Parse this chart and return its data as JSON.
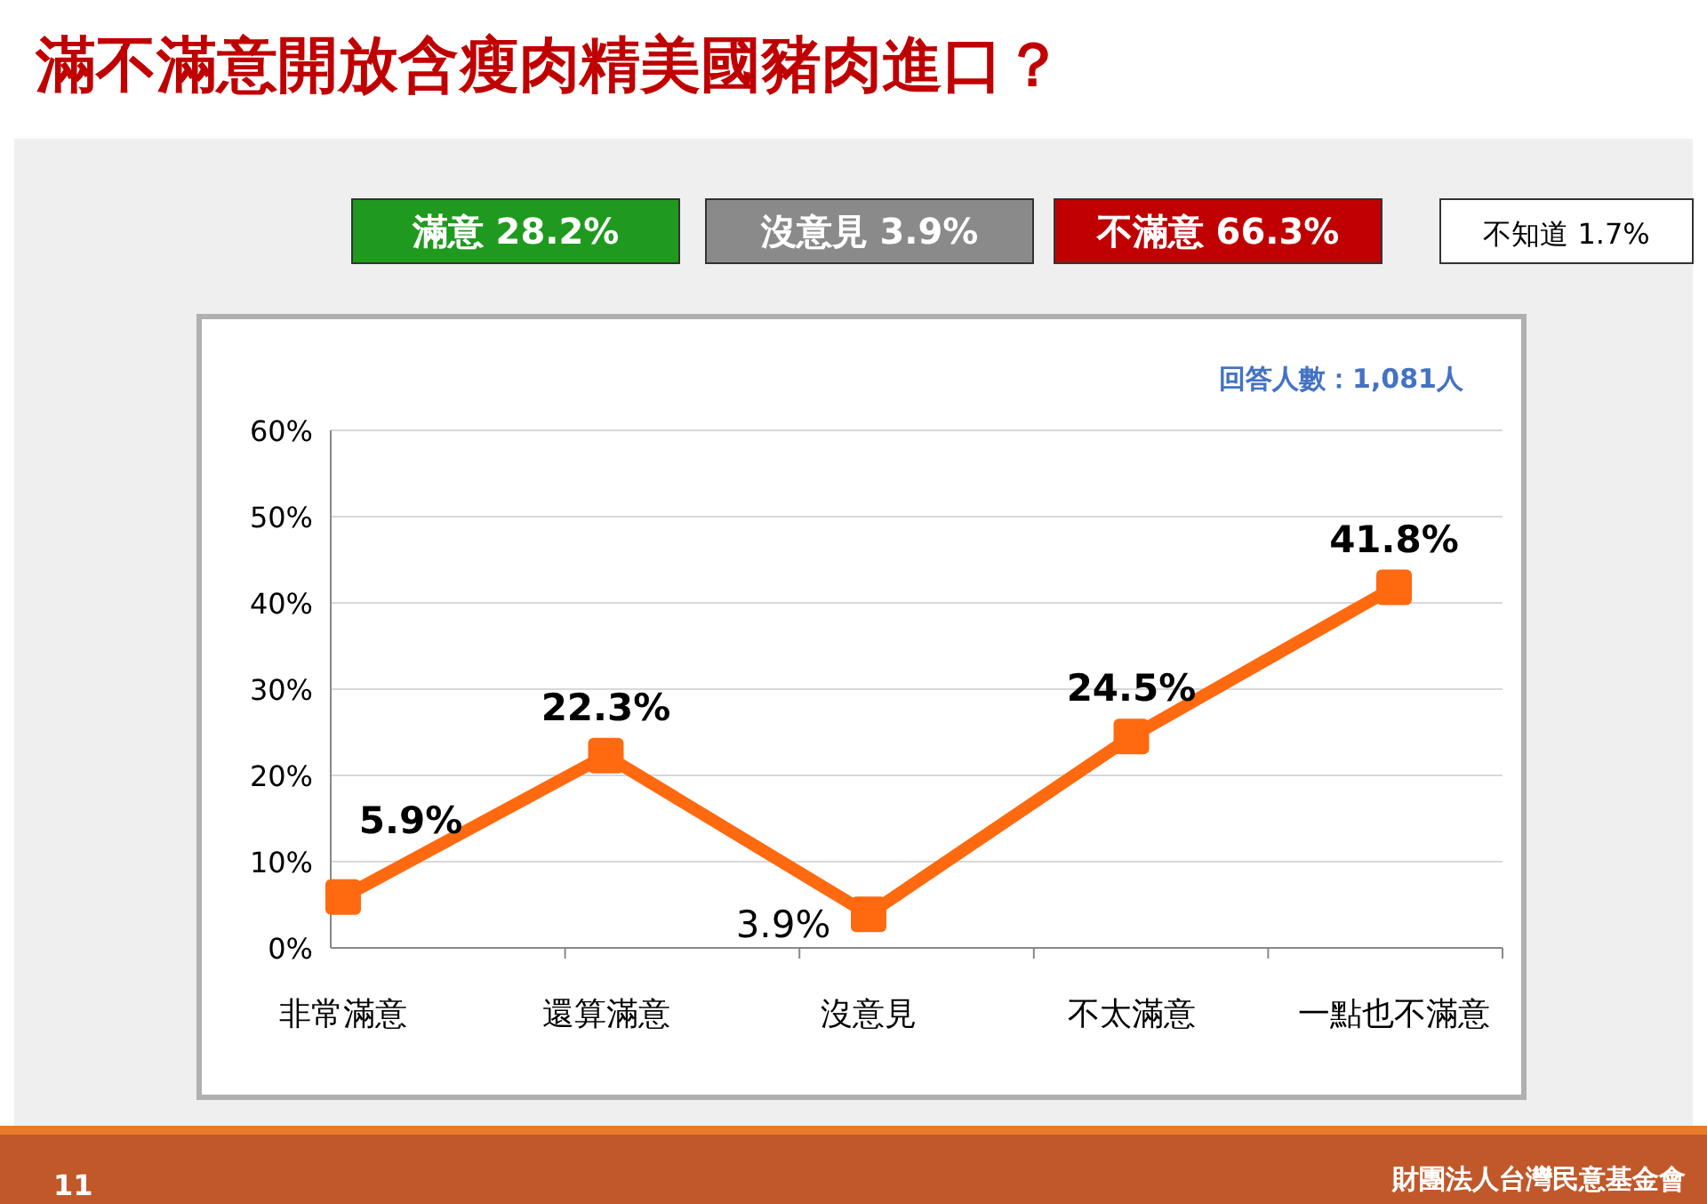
{
  "chart_data": {
    "type": "line",
    "title": "滿不滿意開放含瘦肉精美國豬肉進口？",
    "categories": [
      "非常滿意",
      "還算滿意",
      "沒意見",
      "不太滿意",
      "一點也不滿意"
    ],
    "values": [
      5.9,
      22.3,
      3.9,
      24.5,
      41.8
    ],
    "color": "#ff6a10",
    "ylim": [
      0,
      60
    ],
    "yticks": [
      {
        "value": 0,
        "label": "0%"
      },
      {
        "value": 10,
        "label": "10%"
      },
      {
        "value": 20,
        "label": "20%"
      },
      {
        "value": 30,
        "label": "30%"
      },
      {
        "value": 40,
        "label": "40%"
      },
      {
        "value": 50,
        "label": "50%"
      },
      {
        "value": 60,
        "label": "60%"
      }
    ],
    "value_labels": [
      "5.9%",
      "22.3%",
      "3.9%",
      "24.5%",
      "41.8%"
    ],
    "grid": "y",
    "marker": "square",
    "line_style": "solid",
    "annotations": [
      "滿意 28.2%",
      "沒意見 3.9%",
      "不滿意 66.3%",
      "不知道 1.7%",
      "回答人數：1,081人",
      "11",
      "財團法人台灣民意基金會"
    ]
  }
}
